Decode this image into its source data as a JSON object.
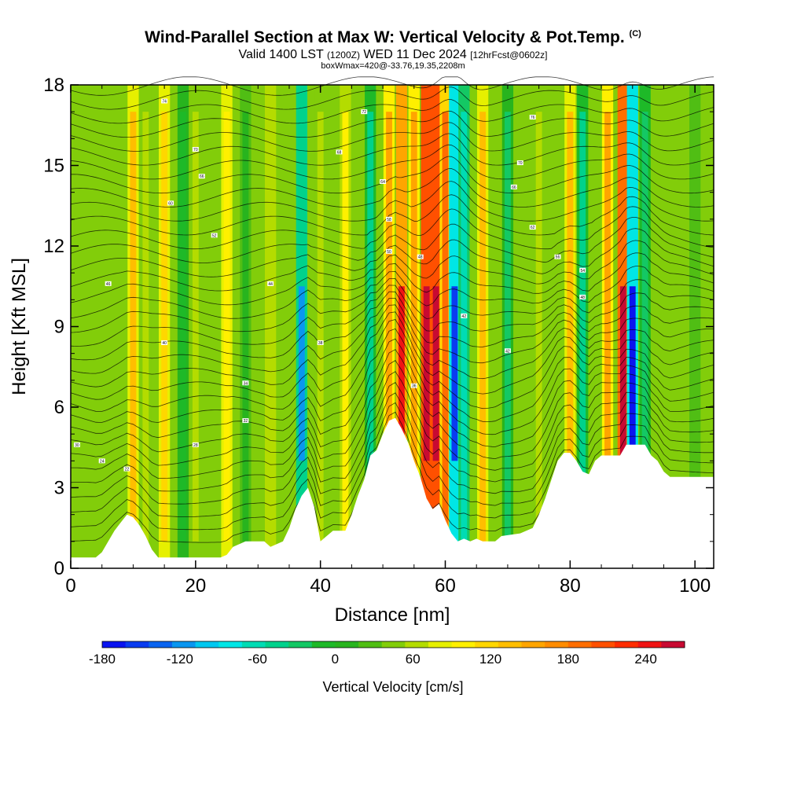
{
  "header": {
    "title": "Wind-Parallel Section at Max W: Vertical Velocity & Pot.Temp.",
    "copyright_mark": "(C)",
    "valid_prefix": "Valid 1400 LST",
    "valid_utc": "(1200Z)",
    "valid_date": "WED 11 Dec 2024",
    "forecast": "[12hrFcst@0602z]",
    "box_info": "boxWmax=420@-33.76,19.35,2208m"
  },
  "chart_data": {
    "type": "heatmap",
    "xlabel": "Distance [nm]",
    "ylabel": "Height [Kft MSL]",
    "xlim": [
      0,
      103
    ],
    "ylim": [
      0,
      18
    ],
    "xticks": [
      "0",
      "20",
      "40",
      "60",
      "80",
      "100"
    ],
    "yticks": [
      "0",
      "3",
      "6",
      "9",
      "12",
      "15",
      "18"
    ],
    "colorbar": {
      "label": "Vertical Velocity [cm/s]",
      "range": [
        -180,
        270
      ],
      "step": 15,
      "tick_labels": [
        "-180",
        "-120",
        "-60",
        "0",
        "60",
        "120",
        "180",
        "240"
      ],
      "colors": [
        "#0a14f0",
        "#0a3cf0",
        "#0a64f0",
        "#0a96f0",
        "#00c8f0",
        "#00e6e6",
        "#00dcb4",
        "#00d28c",
        "#14c864",
        "#1eb928",
        "#28b41e",
        "#50be14",
        "#82cd0a",
        "#b4dc00",
        "#e6f000",
        "#fff000",
        "#ffd700",
        "#ffbe00",
        "#ffa500",
        "#ff8c00",
        "#ff6e00",
        "#ff5000",
        "#ff2d00",
        "#f01414",
        "#c80a32"
      ]
    },
    "vertical_velocity_columns": [
      {
        "x": 10,
        "w": 78
      },
      {
        "x": 12,
        "w": 18
      },
      {
        "x": 15,
        "w": 70
      },
      {
        "x": 18,
        "w": -40
      },
      {
        "x": 20,
        "w": 20
      },
      {
        "x": 25,
        "w": 55
      },
      {
        "x": 28,
        "w": -20
      },
      {
        "x": 32,
        "w": 28
      },
      {
        "x": 37,
        "w": -130
      },
      {
        "x": 40,
        "w": 18
      },
      {
        "x": 44,
        "w": 45
      },
      {
        "x": 48,
        "w": -70
      },
      {
        "x": 51,
        "w": 100
      },
      {
        "x": 53,
        "w": 170
      },
      {
        "x": 55,
        "w": 90
      },
      {
        "x": 57,
        "w": 250
      },
      {
        "x": 58.5,
        "w": 270
      },
      {
        "x": 60,
        "w": 120
      },
      {
        "x": 61.5,
        "w": -165
      },
      {
        "x": 63,
        "w": -90
      },
      {
        "x": 66,
        "w": 80
      },
      {
        "x": 70,
        "w": -50
      },
      {
        "x": 75,
        "w": 20
      },
      {
        "x": 80,
        "w": 75
      },
      {
        "x": 82,
        "w": -70
      },
      {
        "x": 86,
        "w": 100
      },
      {
        "x": 88.5,
        "w": 240
      },
      {
        "x": 90,
        "w": -170
      },
      {
        "x": 92,
        "w": -60
      },
      {
        "x": 96,
        "w": 8
      },
      {
        "x": 100,
        "w": -12
      }
    ],
    "terrain_height_kft": [
      [
        0,
        0.4
      ],
      [
        4,
        0.4
      ],
      [
        5,
        0.6
      ],
      [
        6,
        1.0
      ],
      [
        7,
        1.4
      ],
      [
        8,
        1.7
      ],
      [
        9,
        2.0
      ],
      [
        10,
        1.9
      ],
      [
        11,
        1.6
      ],
      [
        12,
        1.2
      ],
      [
        13,
        0.7
      ],
      [
        14,
        0.4
      ],
      [
        24,
        0.4
      ],
      [
        25,
        0.5
      ],
      [
        26,
        0.8
      ],
      [
        28,
        1.0
      ],
      [
        31,
        1.0
      ],
      [
        32,
        0.8
      ],
      [
        34,
        1.0
      ],
      [
        35,
        1.5
      ],
      [
        36,
        2.2
      ],
      [
        37,
        2.7
      ],
      [
        38,
        3.0
      ],
      [
        39,
        2.3
      ],
      [
        40,
        1.0
      ],
      [
        41,
        1.2
      ],
      [
        42,
        1.4
      ],
      [
        44,
        1.4
      ],
      [
        45,
        2.0
      ],
      [
        46,
        2.7
      ],
      [
        47,
        3.3
      ],
      [
        48,
        4.2
      ],
      [
        49,
        4.4
      ],
      [
        50,
        5.0
      ],
      [
        51,
        5.5
      ],
      [
        52,
        5.6
      ],
      [
        53,
        5.2
      ],
      [
        54,
        4.7
      ],
      [
        55,
        4.0
      ],
      [
        56,
        3.4
      ],
      [
        57,
        2.6
      ],
      [
        58,
        2.2
      ],
      [
        59,
        2.4
      ],
      [
        60,
        1.8
      ],
      [
        61,
        1.3
      ],
      [
        62,
        1.0
      ],
      [
        63,
        1.1
      ],
      [
        64,
        1.0
      ],
      [
        65,
        1.1
      ],
      [
        66,
        1.0
      ],
      [
        68,
        1.0
      ],
      [
        69,
        1.2
      ],
      [
        72,
        1.3
      ],
      [
        74,
        1.5
      ],
      [
        75,
        2.0
      ],
      [
        76,
        2.6
      ],
      [
        77,
        3.3
      ],
      [
        78,
        4.0
      ],
      [
        79,
        4.3
      ],
      [
        80,
        4.3
      ],
      [
        81,
        4.0
      ],
      [
        82,
        3.6
      ],
      [
        83,
        3.5
      ],
      [
        84,
        4.0
      ],
      [
        85,
        4.2
      ],
      [
        88,
        4.2
      ],
      [
        89,
        4.6
      ],
      [
        92,
        4.6
      ],
      [
        93,
        4.2
      ],
      [
        94,
        4.0
      ],
      [
        95,
        3.6
      ],
      [
        96,
        3.4
      ],
      [
        103,
        3.4
      ]
    ],
    "isentrope_labels": [
      {
        "x": 15,
        "y": 17.4,
        "text": "74"
      },
      {
        "x": 20,
        "y": 15.6,
        "text": "70"
      },
      {
        "x": 21,
        "y": 14.6,
        "text": "66"
      },
      {
        "x": 16,
        "y": 13.6,
        "text": "60"
      },
      {
        "x": 23,
        "y": 12.4,
        "text": "52"
      },
      {
        "x": 6,
        "y": 10.6,
        "text": "46"
      },
      {
        "x": 32,
        "y": 10.6,
        "text": "44"
      },
      {
        "x": 15,
        "y": 8.4,
        "text": "40"
      },
      {
        "x": 28,
        "y": 6.9,
        "text": "34"
      },
      {
        "x": 28,
        "y": 5.5,
        "text": "32"
      },
      {
        "x": 1,
        "y": 4.6,
        "text": "30"
      },
      {
        "x": 20,
        "y": 4.6,
        "text": "28"
      },
      {
        "x": 5,
        "y": 4.0,
        "text": "24"
      },
      {
        "x": 9,
        "y": 3.7,
        "text": "22"
      },
      {
        "x": 47,
        "y": 17.0,
        "text": "72"
      },
      {
        "x": 43,
        "y": 15.5,
        "text": "68"
      },
      {
        "x": 50,
        "y": 14.4,
        "text": "64"
      },
      {
        "x": 51,
        "y": 13.0,
        "text": "58"
      },
      {
        "x": 51,
        "y": 11.8,
        "text": "50"
      },
      {
        "x": 56,
        "y": 11.6,
        "text": "48"
      },
      {
        "x": 40,
        "y": 8.4,
        "text": "38"
      },
      {
        "x": 55,
        "y": 6.8,
        "text": "36"
      },
      {
        "x": 63,
        "y": 9.4,
        "text": "42"
      },
      {
        "x": 74,
        "y": 16.8,
        "text": "76"
      },
      {
        "x": 72,
        "y": 15.1,
        "text": "70"
      },
      {
        "x": 71,
        "y": 14.2,
        "text": "66"
      },
      {
        "x": 74,
        "y": 12.7,
        "text": "62"
      },
      {
        "x": 78,
        "y": 11.6,
        "text": "56"
      },
      {
        "x": 82,
        "y": 11.1,
        "text": "54"
      },
      {
        "x": 82,
        "y": 10.1,
        "text": "48"
      },
      {
        "x": 70,
        "y": 8.1,
        "text": "42"
      }
    ]
  }
}
